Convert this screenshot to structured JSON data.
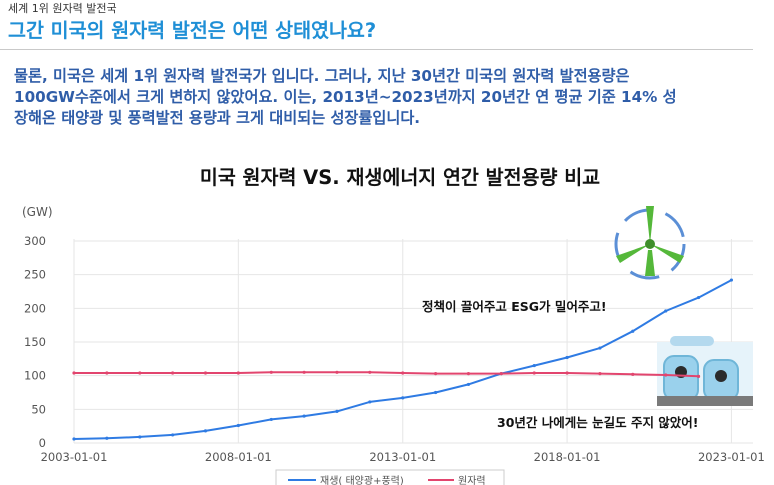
{
  "header": {
    "kicker": "세계 1위 원자력 발전국",
    "title": "그간 미국의 원자력 발전은 어떤 상태였나요?"
  },
  "body": {
    "lines": [
      "물론, 미국은 세계 1위 원자력 발전국가 입니다. 그러나, 지난 30년간 미국의 원자력 발전용량은",
      "100GW수준에서 크게 변하지 않았어요. 이는, 2013년~2023년까지 20년간 연 평균 기준 14% 성",
      "장해온 태양광 및 풍력발전 용량과 크게 대비되는 성장률입니다."
    ]
  },
  "chart_data": {
    "type": "line",
    "title": "미국 원자력 VS. 재생에너지 연간 발전용량 비교",
    "ylabel": "(GW)",
    "ylim": [
      0,
      300
    ],
    "yticks": [
      0,
      50,
      100,
      150,
      200,
      250,
      300
    ],
    "xlim": [
      "2003-01-01",
      "2023-06-01"
    ],
    "xticks": [
      "2003-01-01",
      "2008-01-01",
      "2013-01-01",
      "2018-01-01",
      "2023-01-01"
    ],
    "grid": true,
    "legend_position": "bottom",
    "series": [
      {
        "name": "재생( 태양광+풍력)",
        "color": "#2f7be3",
        "x": [
          "2003-01-01",
          "2004-01-01",
          "2005-01-01",
          "2006-01-01",
          "2007-01-01",
          "2008-01-01",
          "2009-01-01",
          "2010-01-01",
          "2011-01-01",
          "2012-01-01",
          "2013-01-01",
          "2014-01-01",
          "2015-01-01",
          "2016-01-01",
          "2017-01-01",
          "2018-01-01",
          "2019-01-01",
          "2020-01-01",
          "2021-01-01",
          "2022-01-01",
          "2023-01-01"
        ],
        "values": [
          6,
          7,
          9,
          12,
          18,
          26,
          35,
          40,
          47,
          61,
          67,
          75,
          87,
          103,
          115,
          127,
          141,
          166,
          196,
          216,
          242
        ]
      },
      {
        "name": "원자력",
        "color": "#e2456e",
        "x": [
          "2003-01-01",
          "2004-01-01",
          "2005-01-01",
          "2006-01-01",
          "2007-01-01",
          "2008-01-01",
          "2009-01-01",
          "2010-01-01",
          "2011-01-01",
          "2012-01-01",
          "2013-01-01",
          "2014-01-01",
          "2015-01-01",
          "2016-01-01",
          "2017-01-01",
          "2018-01-01",
          "2019-01-01",
          "2020-01-01",
          "2021-01-01",
          "2022-01-01"
        ],
        "values": [
          104,
          104,
          104,
          104,
          104,
          104,
          105,
          105,
          105,
          105,
          104,
          103,
          103,
          103,
          104,
          104,
          103,
          102,
          101,
          99
        ]
      }
    ],
    "annotations": [
      "정책이 끌어주고 ESG가 밀어주고!",
      "30년간 나에게는 눈길도 주지 않았어!"
    ]
  }
}
